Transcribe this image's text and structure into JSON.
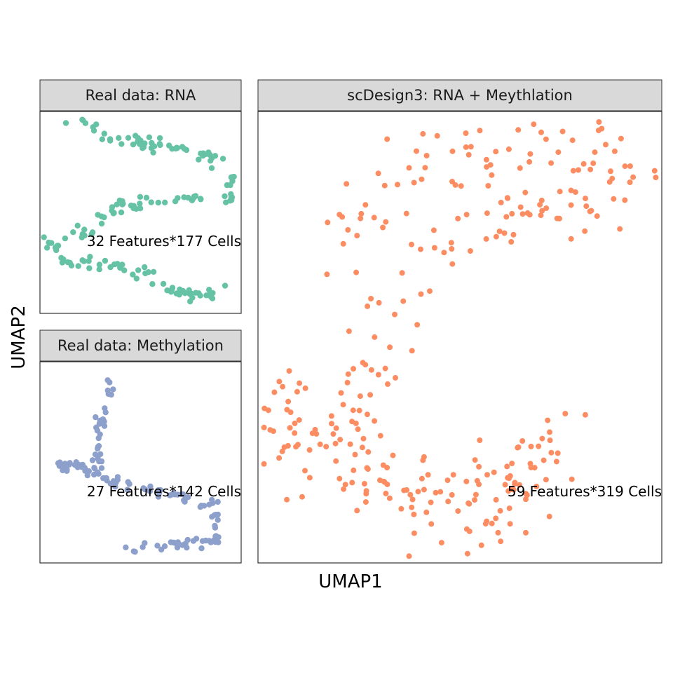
{
  "chart_data": {
    "type": "scatter",
    "xlabel": "UMAP1",
    "ylabel": "UMAP2",
    "grid": false,
    "legend": "none",
    "panels": [
      {
        "title": "Real data: RNA",
        "annotation": "32 Features*177 Cells",
        "color": "#66c2a5",
        "point_count": 177,
        "xlim": [
          0,
          10
        ],
        "ylim": [
          0,
          10
        ],
        "path": [
          [
            1.4,
            9.5
          ],
          [
            2.5,
            9.5
          ],
          [
            3.5,
            8.5
          ],
          [
            5.0,
            8.5
          ],
          [
            6.5,
            8.2
          ],
          [
            8.5,
            7.8
          ],
          [
            9.4,
            7.2
          ],
          [
            9.5,
            6.0
          ],
          [
            9.4,
            5.2
          ],
          [
            8.0,
            5.8
          ],
          [
            6.0,
            5.7
          ],
          [
            4.5,
            5.4
          ],
          [
            3.5,
            5.0
          ],
          [
            2.5,
            4.2
          ],
          [
            1.5,
            3.8
          ],
          [
            0.5,
            3.5
          ],
          [
            1.5,
            2.5
          ],
          [
            2.5,
            2.5
          ],
          [
            4.0,
            2.2
          ],
          [
            5.5,
            2.0
          ],
          [
            6.5,
            1.2
          ],
          [
            7.5,
            0.8
          ],
          [
            8.5,
            1.0
          ],
          [
            9.2,
            1.6
          ]
        ]
      },
      {
        "title": "Real data: Methylation",
        "annotation": "27 Features*142 Cells",
        "color": "#8da0cb",
        "point_count": 142,
        "xlim": [
          0,
          10
        ],
        "ylim": [
          0,
          10
        ],
        "path": [
          [
            3.5,
            9.3
          ],
          [
            3.3,
            8.0
          ],
          [
            3.1,
            6.8
          ],
          [
            2.9,
            5.6
          ],
          [
            3.0,
            4.8
          ],
          [
            0.8,
            4.8
          ],
          [
            2.3,
            4.7
          ],
          [
            3.5,
            4.1
          ],
          [
            5.0,
            3.6
          ],
          [
            6.3,
            3.5
          ],
          [
            7.8,
            3.0
          ],
          [
            8.7,
            2.8
          ],
          [
            8.9,
            1.9
          ],
          [
            8.7,
            1.1
          ],
          [
            7.0,
            1.0
          ],
          [
            5.5,
            0.8
          ],
          [
            4.3,
            0.5
          ]
        ]
      },
      {
        "title": "scDesign3: RNA + Meythlation",
        "annotation": "59 Features*319 Cells",
        "color": "#fc8d62",
        "point_count": 319,
        "xlim": [
          0,
          10
        ],
        "ylim": [
          0,
          10
        ],
        "path": [
          [
            1.8,
            6.9
          ],
          [
            3.5,
            8.4
          ],
          [
            5.5,
            9.3
          ],
          [
            7.5,
            9.3
          ],
          [
            9.4,
            8.8
          ],
          [
            8.4,
            7.9
          ],
          [
            6.5,
            8.1
          ],
          [
            4.5,
            7.0
          ],
          [
            3.3,
            5.7
          ],
          [
            3.0,
            4.6
          ],
          [
            2.5,
            3.4
          ],
          [
            1.0,
            3.0
          ],
          [
            0.5,
            3.6
          ],
          [
            1.3,
            2.0
          ],
          [
            2.5,
            1.8
          ],
          [
            4.5,
            1.7
          ],
          [
            5.5,
            2.0
          ],
          [
            7.1,
            2.4
          ],
          [
            7.5,
            2.8
          ],
          [
            5.8,
            0.8
          ],
          [
            5.0,
            0.7
          ],
          [
            4.3,
            1.3
          ],
          [
            3.2,
            1.7
          ],
          [
            2.3,
            2.8
          ]
        ]
      }
    ]
  },
  "colors": {
    "strip_background": "#d9d9d9",
    "panel_border": "#333333",
    "text": "#1a1a1a"
  }
}
